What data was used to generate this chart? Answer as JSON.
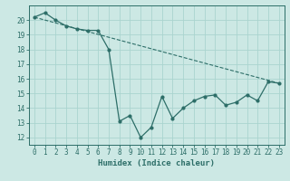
{
  "xlabel": "Humidex (Indice chaleur)",
  "background_color": "#cce8e4",
  "line_color": "#2d6e68",
  "grid_color": "#aad4cf",
  "xlim": [
    -0.5,
    23.5
  ],
  "ylim": [
    11.5,
    21.0
  ],
  "yticks": [
    12,
    13,
    14,
    15,
    16,
    17,
    18,
    19,
    20
  ],
  "xticks": [
    0,
    1,
    2,
    3,
    4,
    5,
    6,
    7,
    8,
    9,
    10,
    11,
    12,
    13,
    14,
    15,
    16,
    17,
    18,
    19,
    20,
    21,
    22,
    23
  ],
  "line1_x": [
    0,
    1,
    2,
    3,
    4,
    5,
    6,
    7,
    8,
    9,
    10,
    11,
    12,
    13,
    14,
    15,
    16,
    17,
    18,
    19,
    20,
    21,
    22,
    23
  ],
  "line1_y": [
    20.2,
    20.5,
    20.0,
    19.6,
    19.4,
    19.3,
    19.3,
    18.0,
    13.1,
    13.5,
    12.0,
    12.7,
    14.8,
    13.3,
    14.0,
    14.5,
    14.8,
    14.9,
    14.2,
    14.4,
    14.9,
    14.5,
    15.8,
    15.7
  ],
  "line2_x": [
    0,
    23
  ],
  "line2_y": [
    20.2,
    15.7
  ]
}
